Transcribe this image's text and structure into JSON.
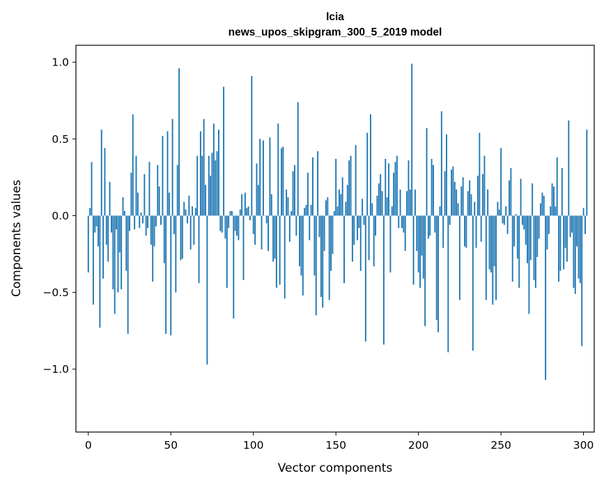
{
  "chart_data": {
    "type": "bar",
    "title": "lcia",
    "subtitle": "news_upos_skipgram_300_5_2019 model",
    "xlabel": "Vector components",
    "ylabel": "Components values",
    "xlim": [
      -7.5,
      306.5
    ],
    "ylim": [
      -1.41,
      1.11
    ],
    "xticks": [
      0,
      50,
      100,
      150,
      200,
      250,
      300
    ],
    "xtick_labels": [
      "0",
      "50",
      "100",
      "150",
      "200",
      "250",
      "300"
    ],
    "yticks": [
      1.0,
      0.5,
      0.0,
      -0.5,
      -1.0
    ],
    "ytick_labels": [
      "1.0",
      "0.5",
      "0.0",
      "−0.5",
      "−1.0"
    ],
    "bar_color": "#1f77b4",
    "values": [
      -0.37,
      0.05,
      0.35,
      -0.58,
      -0.11,
      -0.07,
      -0.2,
      -0.73,
      0.56,
      -0.41,
      0.44,
      -0.19,
      -0.3,
      0.22,
      -0.11,
      -0.48,
      -0.64,
      -0.09,
      -0.5,
      -0.24,
      -0.48,
      0.12,
      0.03,
      -0.36,
      -0.77,
      -0.1,
      0.28,
      0.66,
      -0.09,
      0.39,
      0.15,
      -0.08,
      0.02,
      -0.05,
      0.27,
      -0.13,
      -0.08,
      0.35,
      -0.19,
      -0.43,
      -0.2,
      -0.07,
      0.33,
      0.19,
      -0.06,
      0.52,
      -0.31,
      -0.77,
      0.55,
      0.15,
      -0.78,
      0.63,
      -0.12,
      -0.5,
      0.33,
      0.96,
      -0.29,
      -0.28,
      0.09,
      0.04,
      -0.05,
      0.13,
      -0.22,
      0.06,
      -0.19,
      0.05,
      0.39,
      -0.44,
      0.55,
      0.39,
      0.63,
      0.2,
      -0.97,
      0.39,
      0.26,
      0.41,
      0.6,
      0.36,
      0.42,
      0.56,
      -0.1,
      -0.11,
      0.84,
      -0.15,
      -0.47,
      -0.08,
      0.03,
      0.03,
      -0.67,
      -0.1,
      -0.13,
      -0.16,
      0.04,
      0.14,
      -0.42,
      0.15,
      0.05,
      0.06,
      -0.03,
      0.91,
      -0.12,
      -0.19,
      0.34,
      0.2,
      0.5,
      -0.22,
      0.49,
      0.0,
      -0.05,
      -0.23,
      0.51,
      0.14,
      -0.3,
      -0.28,
      -0.47,
      0.6,
      -0.45,
      0.44,
      0.45,
      -0.54,
      0.17,
      0.12,
      -0.17,
      0.03,
      0.29,
      0.33,
      -0.13,
      0.74,
      -0.33,
      -0.39,
      -0.52,
      0.05,
      0.07,
      0.28,
      -0.16,
      0.07,
      0.38,
      -0.39,
      -0.65,
      0.42,
      -0.14,
      -0.53,
      -0.6,
      -0.23,
      0.1,
      0.12,
      -0.55,
      -0.36,
      -0.25,
      0.03,
      0.37,
      0.06,
      0.17,
      0.14,
      0.25,
      -0.44,
      0.09,
      0.2,
      0.36,
      0.39,
      -0.3,
      -0.19,
      0.46,
      -0.16,
      -0.08,
      -0.36,
      0.11,
      -0.06,
      -0.82,
      0.54,
      -0.29,
      0.66,
      0.08,
      -0.33,
      -0.13,
      0.13,
      0.21,
      0.27,
      0.16,
      -0.84,
      0.37,
      0.12,
      0.34,
      -0.37,
      0.06,
      0.28,
      0.35,
      0.39,
      -0.08,
      0.17,
      -0.08,
      -0.11,
      -0.23,
      0.16,
      0.36,
      0.17,
      0.99,
      -0.45,
      0.17,
      -0.23,
      -0.37,
      -0.47,
      -0.26,
      -0.41,
      -0.72,
      0.57,
      -0.15,
      -0.13,
      0.37,
      0.33,
      -0.11,
      -0.68,
      -0.76,
      0.06,
      0.68,
      -0.21,
      0.29,
      0.53,
      -0.89,
      -0.06,
      0.3,
      0.32,
      0.22,
      0.17,
      0.08,
      -0.55,
      0.19,
      0.25,
      -0.2,
      -0.21,
      0.16,
      0.23,
      0.14,
      -0.88,
      0.09,
      -0.21,
      0.26,
      0.54,
      -0.17,
      0.27,
      0.39,
      -0.55,
      0.17,
      -0.35,
      -0.37,
      -0.58,
      -0.33,
      -0.55,
      0.09,
      0.04,
      0.44,
      -0.05,
      -0.06,
      0.06,
      -0.12,
      0.23,
      0.31,
      -0.43,
      -0.2,
      0.01,
      -0.28,
      -0.47,
      0.24,
      -0.06,
      -0.09,
      -0.19,
      -0.31,
      -0.64,
      -0.29,
      0.21,
      -0.42,
      -0.47,
      -0.27,
      -0.15,
      0.08,
      0.15,
      0.13,
      -1.07,
      -0.22,
      -0.12,
      0.06,
      0.21,
      0.19,
      0.06,
      0.38,
      -0.43,
      -0.36,
      0.31,
      -0.35,
      -0.21,
      -0.3,
      0.62,
      -0.14,
      -0.11,
      -0.47,
      -0.51,
      -0.2,
      -0.41,
      -0.44,
      -0.85,
      0.05,
      -0.12,
      0.56
    ]
  }
}
